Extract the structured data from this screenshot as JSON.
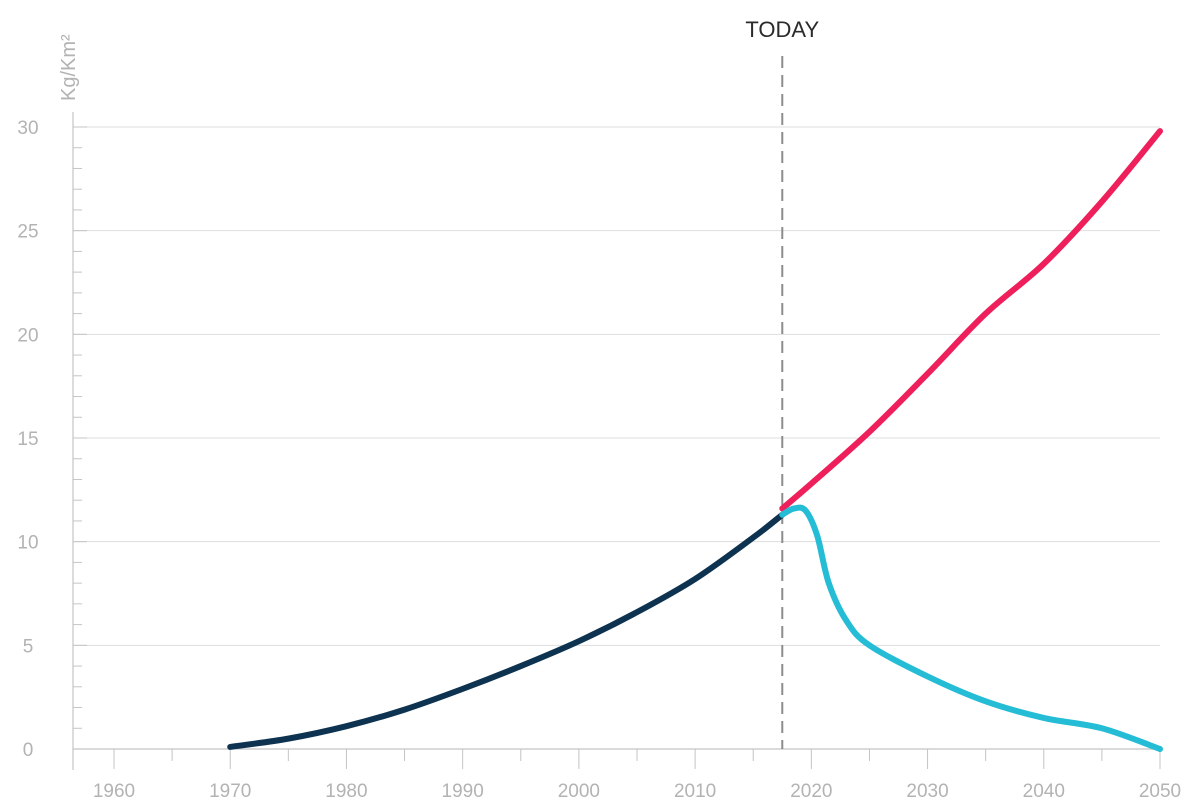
{
  "chart_data": {
    "type": "line",
    "ylabel": "Kg/Km²",
    "xlim": [
      1956,
      2050
    ],
    "ylim": [
      0,
      30
    ],
    "x_ticks": [
      1960,
      1970,
      1980,
      1990,
      2000,
      2010,
      2020,
      2030,
      2040,
      2050
    ],
    "y_ticks": [
      0,
      5,
      10,
      15,
      20,
      25,
      30
    ],
    "grid": true,
    "annotation": {
      "label": "TODAY",
      "x": 2017.5
    },
    "colors": {
      "historical": "#0d3350",
      "rising": "#ee1f5b",
      "declining": "#25bcd6"
    },
    "series": [
      {
        "x": [
          1970,
          1975,
          1980,
          1985,
          1990,
          1995,
          2000,
          2005,
          2010,
          2015,
          2017.5
        ],
        "y": [
          0.1,
          0.5,
          1.1,
          1.9,
          2.9,
          4.0,
          5.2,
          6.6,
          8.2,
          10.2,
          11.3
        ]
      },
      {
        "x": [
          2017.5,
          2020,
          2025,
          2030,
          2035,
          2040,
          2045,
          2050
        ],
        "y": [
          11.6,
          12.8,
          15.3,
          18.1,
          21.0,
          23.4,
          26.4,
          29.8
        ]
      },
      {
        "x": [
          2017.5,
          2018.5,
          2019.5,
          2020.5,
          2021.5,
          2023,
          2025,
          2030,
          2035,
          2040,
          2045,
          2050
        ],
        "y": [
          11.3,
          11.6,
          11.5,
          10.3,
          8.0,
          6.2,
          5.0,
          3.5,
          2.3,
          1.5,
          1.0,
          0.0
        ]
      }
    ]
  }
}
